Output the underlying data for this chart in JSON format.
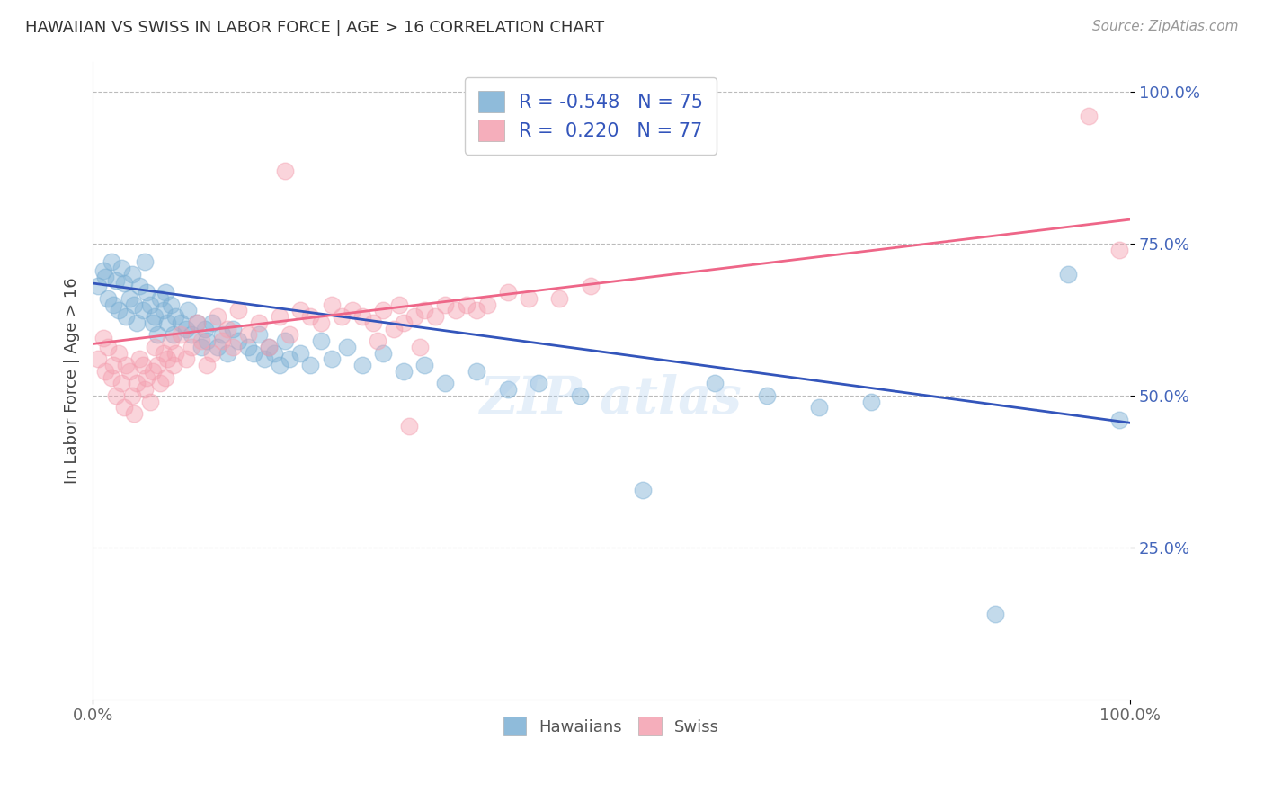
{
  "title": "HAWAIIAN VS SWISS IN LABOR FORCE | AGE > 16 CORRELATION CHART",
  "source": "Source: ZipAtlas.com",
  "ylabel": "In Labor Force | Age > 16",
  "xlim": [
    0.0,
    1.0
  ],
  "ylim": [
    0.0,
    1.05
  ],
  "x_ticks": [
    0.0,
    1.0
  ],
  "x_tick_labels": [
    "0.0%",
    "100.0%"
  ],
  "y_ticks": [
    0.25,
    0.5,
    0.75,
    1.0
  ],
  "y_tick_labels": [
    "25.0%",
    "50.0%",
    "75.0%",
    "100.0%"
  ],
  "hawaiian_color": "#7BAFD4",
  "swiss_color": "#F4A0B0",
  "hawaiian_line_color": "#3355BB",
  "swiss_line_color": "#EE6688",
  "R_hawaiian": -0.548,
  "N_hawaiian": 75,
  "R_swiss": 0.22,
  "N_swiss": 77,
  "background_color": "#ffffff",
  "grid_color": "#bbbbbb",
  "hawaiian_points": [
    [
      0.005,
      0.68
    ],
    [
      0.01,
      0.705
    ],
    [
      0.012,
      0.695
    ],
    [
      0.015,
      0.66
    ],
    [
      0.018,
      0.72
    ],
    [
      0.02,
      0.65
    ],
    [
      0.022,
      0.69
    ],
    [
      0.025,
      0.64
    ],
    [
      0.028,
      0.71
    ],
    [
      0.03,
      0.685
    ],
    [
      0.032,
      0.63
    ],
    [
      0.035,
      0.66
    ],
    [
      0.038,
      0.7
    ],
    [
      0.04,
      0.65
    ],
    [
      0.042,
      0.62
    ],
    [
      0.045,
      0.68
    ],
    [
      0.048,
      0.64
    ],
    [
      0.05,
      0.72
    ],
    [
      0.052,
      0.67
    ],
    [
      0.055,
      0.65
    ],
    [
      0.058,
      0.62
    ],
    [
      0.06,
      0.63
    ],
    [
      0.062,
      0.6
    ],
    [
      0.065,
      0.66
    ],
    [
      0.068,
      0.64
    ],
    [
      0.07,
      0.67
    ],
    [
      0.072,
      0.62
    ],
    [
      0.075,
      0.65
    ],
    [
      0.078,
      0.6
    ],
    [
      0.08,
      0.63
    ],
    [
      0.085,
      0.62
    ],
    [
      0.09,
      0.61
    ],
    [
      0.092,
      0.64
    ],
    [
      0.095,
      0.6
    ],
    [
      0.1,
      0.62
    ],
    [
      0.105,
      0.58
    ],
    [
      0.108,
      0.61
    ],
    [
      0.11,
      0.59
    ],
    [
      0.115,
      0.62
    ],
    [
      0.12,
      0.58
    ],
    [
      0.125,
      0.6
    ],
    [
      0.13,
      0.57
    ],
    [
      0.135,
      0.61
    ],
    [
      0.14,
      0.59
    ],
    [
      0.15,
      0.58
    ],
    [
      0.155,
      0.57
    ],
    [
      0.16,
      0.6
    ],
    [
      0.165,
      0.56
    ],
    [
      0.17,
      0.58
    ],
    [
      0.175,
      0.57
    ],
    [
      0.18,
      0.55
    ],
    [
      0.185,
      0.59
    ],
    [
      0.19,
      0.56
    ],
    [
      0.2,
      0.57
    ],
    [
      0.21,
      0.55
    ],
    [
      0.22,
      0.59
    ],
    [
      0.23,
      0.56
    ],
    [
      0.245,
      0.58
    ],
    [
      0.26,
      0.55
    ],
    [
      0.28,
      0.57
    ],
    [
      0.3,
      0.54
    ],
    [
      0.32,
      0.55
    ],
    [
      0.34,
      0.52
    ],
    [
      0.37,
      0.54
    ],
    [
      0.4,
      0.51
    ],
    [
      0.43,
      0.52
    ],
    [
      0.47,
      0.5
    ],
    [
      0.53,
      0.345
    ],
    [
      0.6,
      0.52
    ],
    [
      0.65,
      0.5
    ],
    [
      0.7,
      0.48
    ],
    [
      0.75,
      0.49
    ],
    [
      0.87,
      0.14
    ],
    [
      0.94,
      0.7
    ],
    [
      0.99,
      0.46
    ]
  ],
  "swiss_points": [
    [
      0.005,
      0.56
    ],
    [
      0.01,
      0.595
    ],
    [
      0.012,
      0.54
    ],
    [
      0.015,
      0.58
    ],
    [
      0.018,
      0.53
    ],
    [
      0.02,
      0.55
    ],
    [
      0.022,
      0.5
    ],
    [
      0.025,
      0.57
    ],
    [
      0.028,
      0.52
    ],
    [
      0.03,
      0.48
    ],
    [
      0.032,
      0.55
    ],
    [
      0.035,
      0.54
    ],
    [
      0.038,
      0.5
    ],
    [
      0.04,
      0.47
    ],
    [
      0.042,
      0.52
    ],
    [
      0.045,
      0.56
    ],
    [
      0.048,
      0.55
    ],
    [
      0.05,
      0.51
    ],
    [
      0.052,
      0.53
    ],
    [
      0.055,
      0.49
    ],
    [
      0.058,
      0.54
    ],
    [
      0.06,
      0.58
    ],
    [
      0.062,
      0.55
    ],
    [
      0.065,
      0.52
    ],
    [
      0.068,
      0.57
    ],
    [
      0.07,
      0.53
    ],
    [
      0.072,
      0.56
    ],
    [
      0.075,
      0.59
    ],
    [
      0.078,
      0.55
    ],
    [
      0.08,
      0.57
    ],
    [
      0.085,
      0.6
    ],
    [
      0.09,
      0.56
    ],
    [
      0.095,
      0.58
    ],
    [
      0.1,
      0.62
    ],
    [
      0.105,
      0.59
    ],
    [
      0.11,
      0.55
    ],
    [
      0.115,
      0.57
    ],
    [
      0.12,
      0.63
    ],
    [
      0.125,
      0.59
    ],
    [
      0.13,
      0.61
    ],
    [
      0.135,
      0.58
    ],
    [
      0.14,
      0.64
    ],
    [
      0.15,
      0.6
    ],
    [
      0.16,
      0.62
    ],
    [
      0.17,
      0.58
    ],
    [
      0.18,
      0.63
    ],
    [
      0.185,
      0.87
    ],
    [
      0.19,
      0.6
    ],
    [
      0.2,
      0.64
    ],
    [
      0.21,
      0.63
    ],
    [
      0.22,
      0.62
    ],
    [
      0.23,
      0.65
    ],
    [
      0.24,
      0.63
    ],
    [
      0.25,
      0.64
    ],
    [
      0.26,
      0.63
    ],
    [
      0.27,
      0.62
    ],
    [
      0.275,
      0.59
    ],
    [
      0.28,
      0.64
    ],
    [
      0.29,
      0.61
    ],
    [
      0.295,
      0.65
    ],
    [
      0.3,
      0.62
    ],
    [
      0.305,
      0.45
    ],
    [
      0.31,
      0.63
    ],
    [
      0.315,
      0.58
    ],
    [
      0.32,
      0.64
    ],
    [
      0.33,
      0.63
    ],
    [
      0.34,
      0.65
    ],
    [
      0.35,
      0.64
    ],
    [
      0.36,
      0.65
    ],
    [
      0.37,
      0.64
    ],
    [
      0.38,
      0.65
    ],
    [
      0.4,
      0.67
    ],
    [
      0.42,
      0.66
    ],
    [
      0.45,
      0.66
    ],
    [
      0.48,
      0.68
    ],
    [
      0.96,
      0.96
    ],
    [
      0.99,
      0.74
    ]
  ]
}
